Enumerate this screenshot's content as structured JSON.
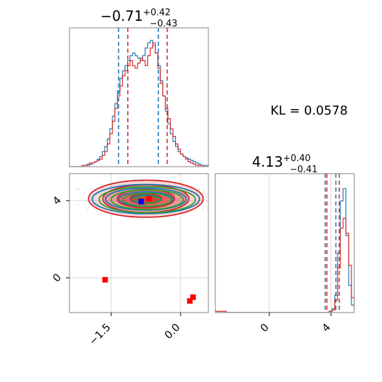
{
  "chart_data": [
    {
      "type": "histogram",
      "panel": "marginal-param-1",
      "title": {
        "main": "−0.71",
        "sup": "+0.42",
        "sub": "−0.43"
      },
      "xlim": [
        -2.4,
        0.6
      ],
      "series": [
        {
          "name": "",
          "color": "#1f77b4",
          "bins": {
            "start": -2.4,
            "width": 0.0545,
            "counts": [
              0,
              0,
              0,
              0,
              0,
              0,
              1,
              1,
              2,
              3,
              4,
              6,
              8,
              12,
              16,
              22,
              30,
              40,
              50,
              60,
              70,
              76,
              80,
              84,
              88,
              90,
              88,
              86,
              84,
              88,
              94,
              98,
              100,
              96,
              90,
              80,
              68,
              56,
              44,
              34,
              26,
              20,
              16,
              12,
              10,
              8,
              7,
              6,
              5,
              4,
              3,
              2,
              1,
              1,
              1
            ]
          },
          "quantile_lines": [
            -1.34,
            -0.48
          ]
        },
        {
          "name": "",
          "color": "#d62728",
          "bins": {
            "start": -2.4,
            "width": 0.0545,
            "counts": [
              0,
              0,
              0,
              0,
              0,
              1,
              1,
              2,
              3,
              3,
              4,
              5,
              6,
              9,
              12,
              18,
              26,
              36,
              46,
              56,
              64,
              72,
              76,
              80,
              84,
              80,
              78,
              82,
              86,
              84,
              80,
              88,
              94,
              98,
              90,
              78,
              66,
              56,
              46,
              38,
              30,
              24,
              18,
              14,
              10,
              8,
              6,
              4,
              3,
              2,
              1,
              1,
              1,
              0,
              0
            ]
          },
          "quantile_lines": [
            -1.14,
            -0.29
          ]
        }
      ]
    },
    {
      "type": "contour",
      "panel": "joint-param-1-vs-param-2",
      "xlim": [
        -2.4,
        0.6
      ],
      "ylim": [
        -1.8,
        5.4
      ],
      "xticks": [
        -1.5,
        0.0
      ],
      "xticklabels": [
        "−1.5",
        "0.0"
      ],
      "yticks": [
        0,
        4
      ],
      "yticklabels": [
        "0",
        "4"
      ],
      "grid": true,
      "markers": [
        {
          "color": "#ff0000",
          "shape": "square",
          "x": -1.63,
          "y": -0.1
        },
        {
          "color": "#ff0000",
          "shape": "square",
          "x": 0.2,
          "y": -1.2
        },
        {
          "color": "#ff0000",
          "shape": "square",
          "x": 0.27,
          "y": -1.0
        },
        {
          "color": "#ff0000",
          "shape": "square",
          "x": -0.68,
          "y": 4.1
        },
        {
          "color": "#0000ff",
          "shape": "square",
          "x": -0.85,
          "y": 3.95
        }
      ],
      "contour_sets": [
        {
          "color": "#d62728",
          "filled": true,
          "center": [
            -0.75,
            4.1
          ],
          "spread": [
            0.62,
            0.48
          ]
        },
        {
          "color": "#1f77b4",
          "filled": false,
          "center": [
            -0.75,
            4.08
          ],
          "spread": [
            0.58,
            0.38
          ]
        },
        {
          "color": "#2ca02c",
          "filled": false,
          "center": [
            -0.72,
            4.05
          ],
          "spread": [
            0.52,
            0.34
          ]
        }
      ]
    },
    {
      "type": "histogram",
      "panel": "marginal-param-2",
      "title": {
        "main": "4.13",
        "sup": "+0.40",
        "sub": "−0.41"
      },
      "xlim": [
        -3.5,
        5.5
      ],
      "xticks": [
        0,
        4
      ],
      "xticklabels": [
        "0",
        "4"
      ],
      "grid": true,
      "series": [
        {
          "name": "",
          "color": "#1f77b4",
          "bins": {
            "start": -3.5,
            "width": 0.18,
            "counts": [
              0,
              0,
              0,
              0,
              0,
              0,
              0,
              0,
              0,
              0,
              0,
              0,
              0,
              0,
              0,
              0,
              0,
              0,
              0,
              0,
              0,
              0,
              0,
              0,
              0,
              0,
              0,
              0,
              0,
              0,
              0,
              0,
              0,
              0,
              0,
              0,
              0,
              0,
              0,
              0,
              0,
              1,
              3,
              14,
              48,
              90,
              100,
              62,
              22,
              6,
              2
            ]
          },
          "quantile_lines": [
            3.62,
            4.31
          ]
        },
        {
          "name": "",
          "color": "#d62728",
          "bins": {
            "start": -3.5,
            "width": 0.18,
            "counts": [
              1,
              1,
              1,
              1,
              0,
              0,
              0,
              0,
              0,
              0,
              0,
              0,
              0,
              0,
              0,
              0,
              0,
              0,
              0,
              0,
              0,
              0,
              0,
              0,
              0,
              0,
              0,
              0,
              0,
              0,
              0,
              0,
              0,
              0,
              0,
              0,
              0,
              0,
              0,
              0,
              0,
              1,
              2,
              10,
              36,
              68,
              76,
              64,
              38,
              12,
              4
            ]
          },
          "quantile_lines": [
            3.73,
            4.53
          ]
        }
      ]
    }
  ],
  "annotation": "KL = 0.0578"
}
